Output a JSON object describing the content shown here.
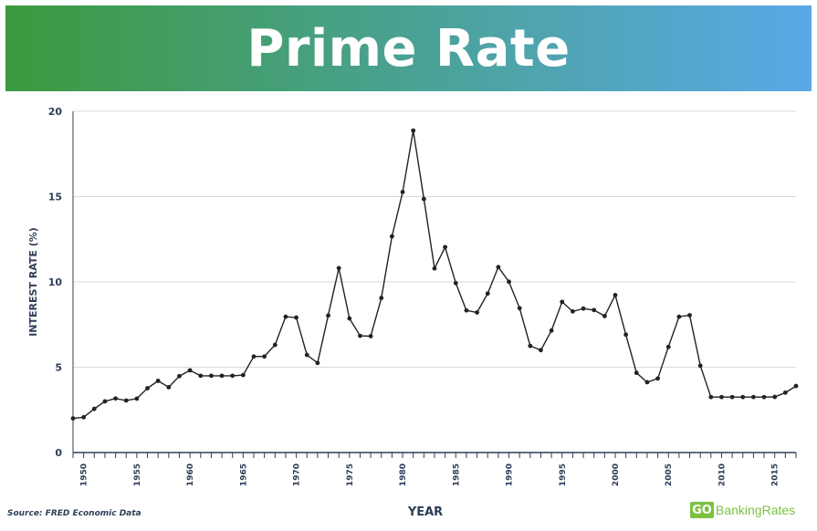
{
  "header": {
    "title": "Prime Rate",
    "gradient_start": "#3b9a3e",
    "gradient_end": "#5aa9e8"
  },
  "source_note": "Source: FRED Economic Data",
  "brand": {
    "mark": "GO",
    "name": "BankingRates",
    "color": "#7cc142"
  },
  "chart_data": {
    "type": "line",
    "title": "Prime Rate",
    "xlabel": "YEAR",
    "ylabel": "INTEREST RATE (%)",
    "ylim": [
      0,
      20
    ],
    "yticks": [
      0,
      5,
      10,
      15,
      20
    ],
    "xlim": [
      1949,
      2017
    ],
    "xticks": [
      1950,
      1955,
      1960,
      1965,
      1970,
      1975,
      1980,
      1985,
      1990,
      1995,
      2000,
      2005,
      2010,
      2015
    ],
    "grid": true,
    "line_color": "#222222",
    "axis_color": "#2d3e57",
    "series": [
      {
        "x": [
          1949,
          1950,
          1951,
          1952,
          1953,
          1954,
          1955,
          1956,
          1957,
          1958,
          1959,
          1960,
          1961,
          1962,
          1963,
          1964,
          1965,
          1966,
          1967,
          1968,
          1969,
          1970,
          1971,
          1972,
          1973,
          1974,
          1975,
          1976,
          1977,
          1978,
          1979,
          1980,
          1981,
          1982,
          1983,
          1984,
          1985,
          1986,
          1987,
          1988,
          1989,
          1990,
          1991,
          1992,
          1993,
          1994,
          1995,
          1996,
          1997,
          1998,
          1999,
          2000,
          2001,
          2002,
          2003,
          2004,
          2005,
          2006,
          2007,
          2008,
          2009,
          2010,
          2011,
          2012,
          2013,
          2014,
          2015,
          2016,
          2017
        ],
        "values": [
          2.0,
          2.07,
          2.56,
          3.0,
          3.17,
          3.05,
          3.16,
          3.77,
          4.2,
          3.83,
          4.48,
          4.82,
          4.5,
          4.5,
          4.5,
          4.5,
          4.54,
          5.63,
          5.63,
          6.31,
          7.96,
          7.91,
          5.72,
          5.25,
          8.03,
          10.81,
          7.86,
          6.84,
          6.82,
          9.06,
          12.67,
          15.27,
          18.87,
          14.86,
          10.79,
          12.04,
          9.93,
          8.33,
          8.21,
          9.32,
          10.87,
          10.01,
          8.46,
          6.25,
          6.0,
          7.15,
          8.83,
          8.27,
          8.44,
          8.35,
          8.0,
          9.23,
          6.91,
          4.67,
          4.12,
          4.34,
          6.19,
          7.96,
          8.05,
          5.09,
          3.25,
          3.25,
          3.25,
          3.25,
          3.25,
          3.25,
          3.26,
          3.51,
          3.9
        ]
      }
    ]
  }
}
